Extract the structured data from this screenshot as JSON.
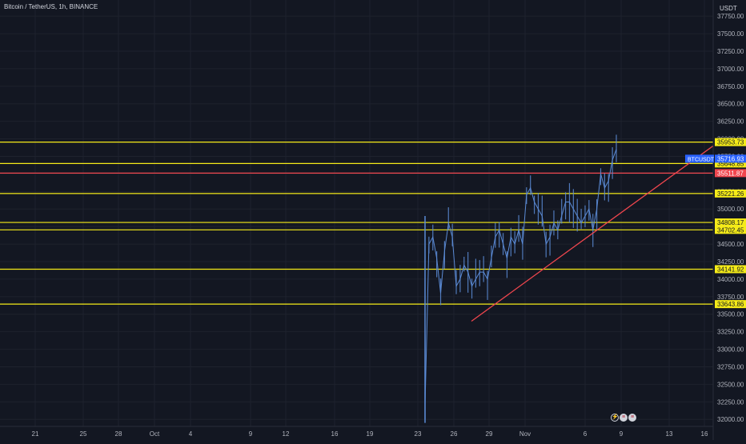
{
  "header": {
    "symbol_title": "Bitcoin / TetherUS, 1h, BINANCE",
    "currency": "USDT"
  },
  "events": {
    "icons": [
      "lightning-icon",
      "us-flag-icon",
      "us-flag-icon"
    ]
  },
  "colors": {
    "background": "#131722",
    "grid": "#1e222d",
    "axis_text": "#b2b5be",
    "candle": "#5b8bd6",
    "support_line": "#f5eb18",
    "red_line": "#f0464e",
    "price_tag": "#2962ff"
  },
  "chart_data": {
    "type": "line",
    "x_axis_labels": [
      "21",
      "25",
      "28",
      "Oct",
      "4",
      "9",
      "12",
      "16",
      "19",
      "23",
      "26",
      "29",
      "Nov",
      "6",
      "9",
      "13",
      "16"
    ],
    "y_axis_labels": [
      "37750.00",
      "37500.00",
      "37250.00",
      "37000.00",
      "36750.00",
      "36500.00",
      "36250.00",
      "36000.00",
      "35750.00",
      "35500.00",
      "35250.00",
      "35000.00",
      "34750.00",
      "34500.00",
      "34250.00",
      "34000.00",
      "33750.00",
      "33500.00",
      "33250.00",
      "33000.00",
      "32750.00",
      "32500.00",
      "32250.00",
      "32000.00"
    ],
    "ylim": [
      31900,
      37980
    ],
    "horizontal_levels": [
      {
        "label": "35953.73",
        "value": 35953.73,
        "color": "#f5eb18"
      },
      {
        "label": "35648.85",
        "value": 35648.85,
        "color": "#f5eb18"
      },
      {
        "label": "35511.87",
        "value": 35511.87,
        "color": "#f0464e"
      },
      {
        "label": "35221.26",
        "value": 35221.26,
        "color": "#f5eb18"
      },
      {
        "label": "34808.17",
        "value": 34808.17,
        "color": "#f5eb18"
      },
      {
        "label": "34702.45",
        "value": 34702.45,
        "color": "#f5eb18"
      },
      {
        "label": "34141.92",
        "value": 34141.92,
        "color": "#f5eb18"
      },
      {
        "label": "33643.86",
        "value": 33643.86,
        "color": "#f5eb18"
      }
    ],
    "current_price": {
      "symbol": "BTCUSDT",
      "value": 35716.93,
      "label": "35716.93"
    },
    "trendline": {
      "start": {
        "x": "26",
        "y": 33400
      },
      "end": {
        "x": "16",
        "y": 35900
      }
    },
    "price_series": {
      "x_start": "22",
      "x_end": "9",
      "close": [
        32200,
        34500,
        34600,
        34300,
        33800,
        34400,
        34800,
        34600,
        33900,
        34000,
        34200,
        34100,
        33900,
        34000,
        34100,
        34100,
        34000,
        34300,
        34600,
        34700,
        34500,
        34300,
        34600,
        34500,
        34700,
        34500,
        35200,
        35300,
        35100,
        35000,
        34900,
        34500,
        34600,
        34800,
        34700,
        34900,
        35100,
        35100,
        35000,
        34900,
        34800,
        34900,
        35000,
        34700,
        35000,
        35500,
        35300,
        35400,
        35700,
        35850
      ]
    }
  }
}
